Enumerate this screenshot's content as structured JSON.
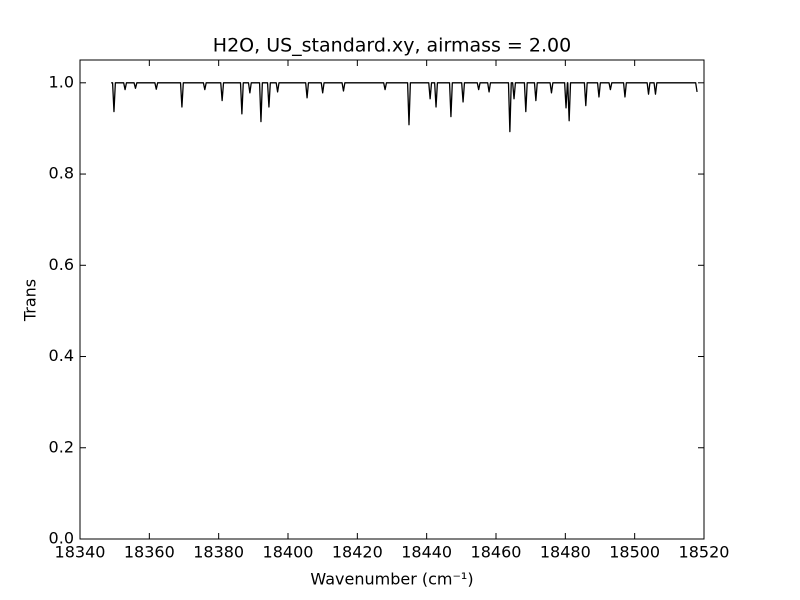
{
  "chart_data": {
    "type": "line",
    "title": "H2O, US_standard.xy, airmass = 2.00",
    "x_label": "Wavenumber (cm⁻¹)",
    "y_label": "Trans",
    "xlim": [
      18340,
      18520
    ],
    "ylim": [
      0,
      1.05
    ],
    "xticks": [
      18340,
      18360,
      18380,
      18400,
      18420,
      18440,
      18460,
      18480,
      18500,
      18520
    ],
    "yticks": [
      {
        "value": 0,
        "label": "0.0"
      },
      0.2,
      0.4,
      0.6,
      0.8,
      {
        "value": 1,
        "label": "1.0"
      }
    ],
    "series": [
      {
        "color": "#000000",
        "x": [
          18349.0,
          18349.4,
          18349.8,
          18350.2,
          18352.6,
          18353,
          18353.4,
          18355.6,
          18356,
          18356.4,
          18361.6,
          18362,
          18362.4,
          18369.0,
          18369.4,
          18369.8,
          18375.6,
          18376,
          18376.4,
          18380.6,
          18381.0,
          18381.4,
          18386.3,
          18386.7,
          18387.1,
          18388.6,
          18389,
          18389.4,
          18391.8,
          18392.2,
          18392.6,
          18394.1,
          18394.5,
          18394.9,
          18396.6,
          18397,
          18397.4,
          18405.1,
          18405.5,
          18405.9,
          18409.6,
          18410,
          18410.4,
          18415.6,
          18416,
          18416.4,
          18427.6,
          18428,
          18428.4,
          18434.5,
          18434.9,
          18435.3,
          18440.6,
          18441.0,
          18441.4,
          18442.3,
          18442.7,
          18443.1,
          18446.6,
          18447.0,
          18447.4,
          18450.1,
          18450.5,
          18450.9,
          18454.6,
          18455,
          18455.4,
          18457.6,
          18458,
          18458.4,
          18463.6,
          18464.0,
          18464.4,
          18464.8,
          18465.2,
          18465.6,
          18468.2,
          18468.6,
          18469.0,
          18471.1,
          18471.5,
          18471.9,
          18475.6,
          18476,
          18476.4,
          18479.8,
          18480.2,
          18480.6,
          18480.7,
          18481.1,
          18481.5,
          18485.5,
          18485.9,
          18486.3,
          18489.3,
          18489.7,
          18490.1,
          18492.6,
          18493,
          18493.4,
          18496.8,
          18497.2,
          18497.6,
          18503.6,
          18504,
          18504.4,
          18505.6,
          18506,
          18506.4,
          18517.6,
          18518
        ],
        "values": [
          1.0,
          1.0,
          0.937,
          1.0,
          1.0,
          0.985,
          1.0,
          1.0,
          0.988,
          1.0,
          1.0,
          0.986,
          1.0,
          1.0,
          0.947,
          1.0,
          1.0,
          0.985,
          1.0,
          1.0,
          0.961,
          1.0,
          1.0,
          0.932,
          1.0,
          1.0,
          0.978,
          1.0,
          1.0,
          0.915,
          1.0,
          1.0,
          0.947,
          1.0,
          1.0,
          0.98,
          1.0,
          1.0,
          0.967,
          1.0,
          1.0,
          0.978,
          1.0,
          1.0,
          0.982,
          1.0,
          1.0,
          0.985,
          1.0,
          1.0,
          0.908,
          1.0,
          1.0,
          0.965,
          1.0,
          1.0,
          0.947,
          1.0,
          1.0,
          0.926,
          1.0,
          1.0,
          0.958,
          1.0,
          1.0,
          0.985,
          1.0,
          1.0,
          0.98,
          1.0,
          1.0,
          0.893,
          1.0,
          1.0,
          0.965,
          1.0,
          1.0,
          0.937,
          1.0,
          1.0,
          0.961,
          1.0,
          1.0,
          0.978,
          1.0,
          1.0,
          0.945,
          1.0,
          1.0,
          0.917,
          1.0,
          1.0,
          0.95,
          1.0,
          1.0,
          0.969,
          1.0,
          1.0,
          0.985,
          1.0,
          1.0,
          0.969,
          1.0,
          1.0,
          0.975,
          1.0,
          1.0,
          0.975,
          1.0,
          1.0,
          0.98
        ]
      }
    ]
  }
}
